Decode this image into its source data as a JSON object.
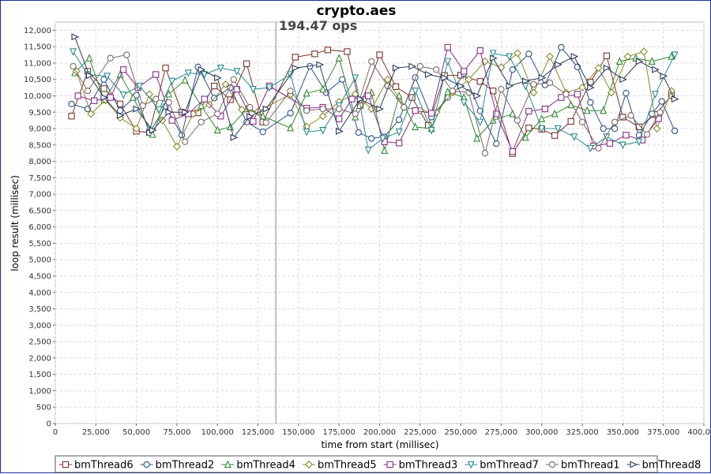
{
  "chart_data": {
    "type": "line",
    "title": "crypto.aes",
    "annotation": "194.47 ops",
    "marker_x": 136000,
    "xlabel": "time from start (millisec)",
    "ylabel": "loop result (millisec)",
    "xlim": [
      0,
      400000
    ],
    "ylim": [
      0,
      12250
    ],
    "x_ticks": [
      0,
      25000,
      50000,
      75000,
      100000,
      125000,
      150000,
      175000,
      200000,
      225000,
      250000,
      275000,
      300000,
      325000,
      350000,
      375000,
      400000
    ],
    "x_tick_labels": [
      "0",
      "25,000",
      "50,000",
      "75,000",
      "100,000",
      "125,000",
      "150,000",
      "175,000",
      "200,000",
      "225,000",
      "250,000",
      "275,000",
      "300,000",
      "325,000",
      "350,000",
      "375,000",
      "400,000"
    ],
    "y_ticks": [
      0,
      500,
      1000,
      1500,
      2000,
      2500,
      3000,
      3500,
      4000,
      4500,
      5000,
      5500,
      6000,
      6500,
      7000,
      7500,
      8000,
      8500,
      9000,
      9500,
      10000,
      10500,
      11000,
      11500,
      12000
    ],
    "y_tick_labels": [
      "0",
      "500",
      "1,000",
      "1,500",
      "2,000",
      "2,500",
      "3,000",
      "3,500",
      "4,000",
      "4,500",
      "5,000",
      "5,500",
      "6,000",
      "6,500",
      "7,000",
      "7,500",
      "8,000",
      "8,500",
      "9,000",
      "9,500",
      "10,000",
      "10,500",
      "11,000",
      "11,500",
      "12,000"
    ],
    "grid": true,
    "legend_position": "bottom",
    "series": [
      {
        "name": "bmThread6",
        "color": "#7a3528",
        "marker": "square",
        "x": [
          10000,
          20000,
          30000,
          40000,
          50000,
          58000,
          68000,
          78000,
          88000,
          98000,
          108000,
          118000,
          128000,
          148000,
          160000,
          168000,
          180000,
          188000,
          200000,
          210000,
          220000,
          230000,
          240000,
          250000,
          262000,
          270000,
          282000,
          292000,
          300000,
          308000,
          318000,
          330000,
          340000,
          350000,
          360000,
          370000,
          380000
        ],
        "y": [
          9380,
          10750,
          10220,
          9750,
          8920,
          8880,
          10850,
          9500,
          9480,
          10300,
          9880,
          10980,
          9200,
          11180,
          11280,
          11400,
          11350,
          9700,
          11250,
          10280,
          9950,
          9100,
          10620,
          10630,
          10440,
          10150,
          8240,
          9020,
          8980,
          8790,
          9220,
          10420,
          11220,
          9350,
          9050,
          9430,
          10010
        ]
      },
      {
        "name": "bmThread2",
        "color": "#2a4f8f",
        "marker": "circle",
        "x": [
          10000,
          20000,
          30000,
          40000,
          50000,
          58000,
          68000,
          78000,
          88000,
          98000,
          108000,
          118000,
          128000,
          145000,
          157000,
          167000,
          177000,
          187000,
          195000,
          203000,
          212000,
          222000,
          232000,
          242000,
          252000,
          262000,
          272000,
          282000,
          292000,
          302000,
          312000,
          322000,
          330000,
          338000,
          345000,
          352000,
          360000,
          368000,
          374000,
          382000
        ],
        "y": [
          9750,
          9600,
          10500,
          9550,
          10020,
          8870,
          9680,
          8800,
          10880,
          9930,
          10250,
          9200,
          8900,
          9470,
          10900,
          10100,
          10500,
          8880,
          8700,
          8750,
          9270,
          10560,
          9350,
          9950,
          10680,
          9540,
          8540,
          10800,
          11280,
          10330,
          11480,
          10880,
          9800,
          9000,
          9000,
          10080,
          8800,
          9450,
          9830,
          8930
        ]
      },
      {
        "name": "bmThread4",
        "color": "#2e8a2e",
        "marker": "triangle-up",
        "x": [
          12000,
          21000,
          30000,
          40000,
          48000,
          60000,
          70000,
          80000,
          90000,
          100000,
          108000,
          118000,
          128000,
          145000,
          155000,
          165000,
          175000,
          185000,
          195000,
          203000,
          212000,
          222000,
          232000,
          242000,
          252000,
          260000,
          270000,
          282000,
          290000,
          300000,
          308000,
          318000,
          328000,
          338000,
          348000,
          358000,
          368000,
          380000
        ],
        "y": [
          10700,
          11150,
          9870,
          10650,
          9950,
          8820,
          10050,
          10480,
          9700,
          8950,
          9050,
          9600,
          9380,
          9020,
          10080,
          10200,
          11150,
          9350,
          10100,
          8330,
          10000,
          9050,
          9000,
          10120,
          9950,
          8700,
          9250,
          9450,
          8730,
          9300,
          9450,
          9720,
          9550,
          9550,
          11050,
          11150,
          11050,
          11200
        ]
      },
      {
        "name": "bmThread5",
        "color": "#8a8a2a",
        "marker": "diamond",
        "x": [
          13000,
          22000,
          31000,
          40000,
          50000,
          58000,
          66000,
          75000,
          85000,
          95000,
          105000,
          115000,
          125000,
          145000,
          155000,
          165000,
          175000,
          185000,
          195000,
          205000,
          215000,
          225000,
          235000,
          245000,
          255000,
          265000,
          275000,
          285000,
          295000,
          305000,
          315000,
          325000,
          335000,
          343000,
          353000,
          363000,
          371000,
          380000
        ],
        "y": [
          10750,
          9450,
          9870,
          9330,
          9000,
          10050,
          9250,
          8450,
          9450,
          9730,
          10350,
          9580,
          9520,
          10050,
          9060,
          9380,
          9820,
          10050,
          9600,
          10500,
          9650,
          9550,
          9500,
          10100,
          10500,
          11050,
          10870,
          11300,
          10100,
          11200,
          10100,
          10250,
          10850,
          10100,
          11200,
          11350,
          9000,
          10150
        ]
      },
      {
        "name": "bmThread3",
        "color": "#8a2a8a",
        "marker": "square",
        "x": [
          14000,
          24000,
          34000,
          42000,
          51000,
          62000,
          72000,
          82000,
          92000,
          102000,
          112000,
          122000,
          132000,
          155000,
          165000,
          175000,
          183000,
          193000,
          203000,
          212000,
          222000,
          232000,
          242000,
          252000,
          262000,
          272000,
          282000,
          292000,
          302000,
          312000,
          322000,
          332000,
          342000,
          352000,
          362000,
          372000
        ],
        "y": [
          10000,
          9850,
          9950,
          10800,
          10250,
          10650,
          9250,
          9450,
          9900,
          9380,
          10200,
          9220,
          10300,
          9620,
          9650,
          9300,
          9900,
          10000,
          8600,
          8560,
          9550,
          9470,
          11480,
          10750,
          11380,
          9450,
          8300,
          9530,
          9600,
          9950,
          10050,
          8470,
          8550,
          8800,
          8650,
          9300
        ]
      },
      {
        "name": "bmThread7",
        "color": "#2a8a8a",
        "marker": "triangle-down",
        "x": [
          11000,
          20000,
          32000,
          42000,
          52000,
          64000,
          72000,
          82000,
          92000,
          102000,
          112000,
          122000,
          132000,
          145000,
          155000,
          165000,
          175000,
          185000,
          193000,
          202000,
          212000,
          222000,
          232000,
          242000,
          252000,
          262000,
          270000,
          280000,
          290000,
          300000,
          310000,
          320000,
          330000,
          340000,
          350000,
          360000,
          370000,
          382000
        ],
        "y": [
          11350,
          10650,
          10600,
          10030,
          10300,
          9580,
          10450,
          10700,
          10650,
          10850,
          10750,
          10200,
          10250,
          10650,
          8900,
          8950,
          9700,
          10550,
          8350,
          8700,
          8900,
          10150,
          8950,
          11050,
          9800,
          9200,
          11300,
          11200,
          10300,
          9000,
          9000,
          8750,
          8400,
          8750,
          8500,
          8600,
          10050,
          11250
        ]
      },
      {
        "name": "bmThread1",
        "color": "#7a6868",
        "marker": "circle",
        "x": [
          11000,
          20000,
          34000,
          44000,
          54000,
          62000,
          70000,
          80000,
          90000,
          100000,
          110000,
          120000,
          130000,
          145000,
          155000,
          165000,
          175000,
          185000,
          195000,
          205000,
          215000,
          225000,
          235000,
          245000,
          255000,
          265000,
          275000,
          285000,
          295000,
          305000,
          315000,
          325000,
          335000,
          345000,
          355000,
          365000,
          373000
        ],
        "y": [
          10900,
          10150,
          11150,
          11250,
          9700,
          9900,
          9800,
          8600,
          9200,
          9450,
          10500,
          9650,
          9180,
          10150,
          9550,
          9600,
          9600,
          9450,
          11050,
          10300,
          9650,
          10900,
          10800,
          10150,
          10100,
          8250,
          10200,
          9250,
          10350,
          10400,
          10050,
          9200,
          8400,
          9200,
          9400,
          8820,
          9500
        ]
      },
      {
        "name": "bmThread8",
        "color": "#2a3a5a",
        "marker": "triangle-right",
        "x": [
          12000,
          21000,
          30000,
          40000,
          50000,
          60000,
          70000,
          80000,
          90000,
          100000,
          110000,
          120000,
          130000,
          148000,
          163000,
          175000,
          188000,
          200000,
          210000,
          220000,
          230000,
          240000,
          250000,
          260000,
          270000,
          280000,
          290000,
          300000,
          310000,
          320000,
          330000,
          340000,
          350000,
          360000,
          370000,
          375000,
          382000
        ],
        "y": [
          11800,
          10620,
          9950,
          9400,
          9600,
          8950,
          9500,
          9500,
          10800,
          10550,
          8730,
          9370,
          9600,
          10850,
          10950,
          8920,
          9900,
          9600,
          10850,
          10900,
          10650,
          10550,
          10300,
          10000,
          11150,
          10300,
          10450,
          10550,
          10950,
          11200,
          10250,
          10850,
          10500,
          11050,
          10800,
          10600,
          9900
        ]
      }
    ]
  }
}
